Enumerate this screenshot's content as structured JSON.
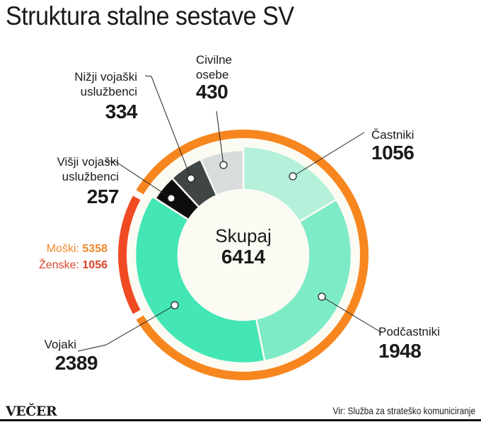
{
  "title": "Struktura stalne sestave SV",
  "chart_data": {
    "type": "pie",
    "variant": "donut",
    "title": "Struktura stalne sestave SV",
    "total_label": "Skupaj",
    "total": 6414,
    "slices": [
      {
        "label": "Častniki",
        "value": 1056,
        "color": "#b4f0da"
      },
      {
        "label": "Podčastniki",
        "value": 1948,
        "color": "#7eebc7"
      },
      {
        "label": "Vojaki",
        "value": 2389,
        "color": "#45e6b6"
      },
      {
        "label": "Višji vojaški uslužbenci",
        "value": 257,
        "color": "#0d0d0d"
      },
      {
        "label": "Nižji vojaški uslužbenci",
        "value": 334,
        "color": "#404646"
      },
      {
        "label": "Civilne osebe",
        "value": 430,
        "color": "#d8dcdc"
      }
    ],
    "gender_ring": [
      {
        "label": "Moški",
        "value": 5358,
        "color": "#f7861f"
      },
      {
        "label": "Ženske",
        "value": 1056,
        "color": "#f04a23"
      }
    ]
  },
  "labels": {
    "castniki": {
      "l1": "Častniki",
      "num": "1056"
    },
    "podcastniki": {
      "l1": "Podčastniki",
      "num": "1948"
    },
    "vojaki": {
      "l1": "Vojaki",
      "num": "2389"
    },
    "visji": {
      "l1": "Višji vojaški",
      "l2": "uslužbenci",
      "num": "257"
    },
    "nizji": {
      "l1": "Nižji vojaški",
      "l2": "uslužbenci",
      "num": "334"
    },
    "civilne": {
      "l1": "Civilne",
      "l2": "osebe",
      "num": "430"
    }
  },
  "center": {
    "label": "Skupaj",
    "value": "6414"
  },
  "gender": {
    "male_label": "Moški:",
    "male_value": "5358",
    "female_label": "Ženske:",
    "female_value": "1056"
  },
  "footer": {
    "brand": "VEČER",
    "source": "Vir: Služba za strateško komuniciranje"
  }
}
